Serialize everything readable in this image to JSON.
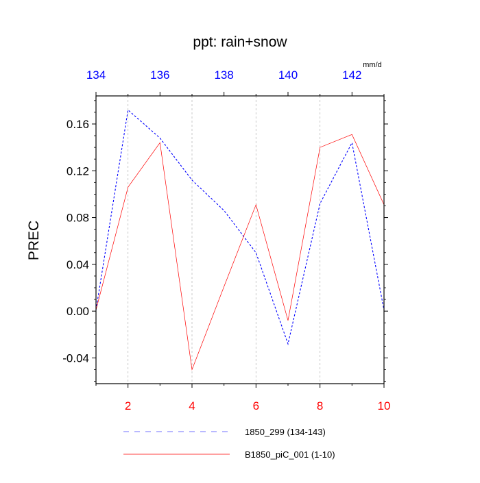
{
  "chart_data": {
    "type": "line",
    "title": "ppt: rain+snow",
    "units": "mm/d",
    "ylabel": "PREC",
    "ylim": [
      -0.062,
      0.184
    ],
    "y_ticks": [
      -0.04,
      0.0,
      0.04,
      0.08,
      0.12,
      0.16
    ],
    "y_tick_labels": [
      "-0.04",
      "0.00",
      "0.04",
      "0.08",
      "0.12",
      "0.16"
    ],
    "bottom_axis": {
      "range": [
        1,
        10
      ],
      "ticks": [
        2,
        4,
        6,
        8,
        10
      ],
      "tick_labels": [
        "2",
        "4",
        "6",
        "8",
        "10"
      ],
      "color": "#ff0000"
    },
    "top_axis": {
      "range": [
        134,
        143
      ],
      "ticks": [
        134,
        136,
        138,
        140,
        142
      ],
      "tick_labels": [
        "134",
        "136",
        "138",
        "140",
        "142"
      ],
      "color": "#0000ff"
    },
    "vertical_grid": [
      2,
      4,
      6,
      8
    ],
    "legend_position": "bottom",
    "series": [
      {
        "name": "1850_299 (134-143)",
        "axis": "top",
        "color": "#0000ff",
        "dash": "dashed",
        "x": [
          134,
          135,
          136,
          137,
          138,
          139,
          140,
          141,
          142,
          143
        ],
        "y": [
          0.001,
          0.172,
          0.148,
          0.112,
          0.086,
          0.05,
          -0.028,
          0.092,
          0.144,
          0.001
        ]
      },
      {
        "name": "B1850_piC_001 (1-10)",
        "axis": "bottom",
        "color": "#ff0000",
        "dash": "solid",
        "x": [
          1,
          2,
          3,
          4,
          5,
          6,
          7,
          8,
          9,
          10
        ],
        "y": [
          0.001,
          0.106,
          0.144,
          -0.05,
          0.021,
          0.091,
          -0.008,
          0.14,
          0.151,
          0.091
        ]
      }
    ]
  }
}
